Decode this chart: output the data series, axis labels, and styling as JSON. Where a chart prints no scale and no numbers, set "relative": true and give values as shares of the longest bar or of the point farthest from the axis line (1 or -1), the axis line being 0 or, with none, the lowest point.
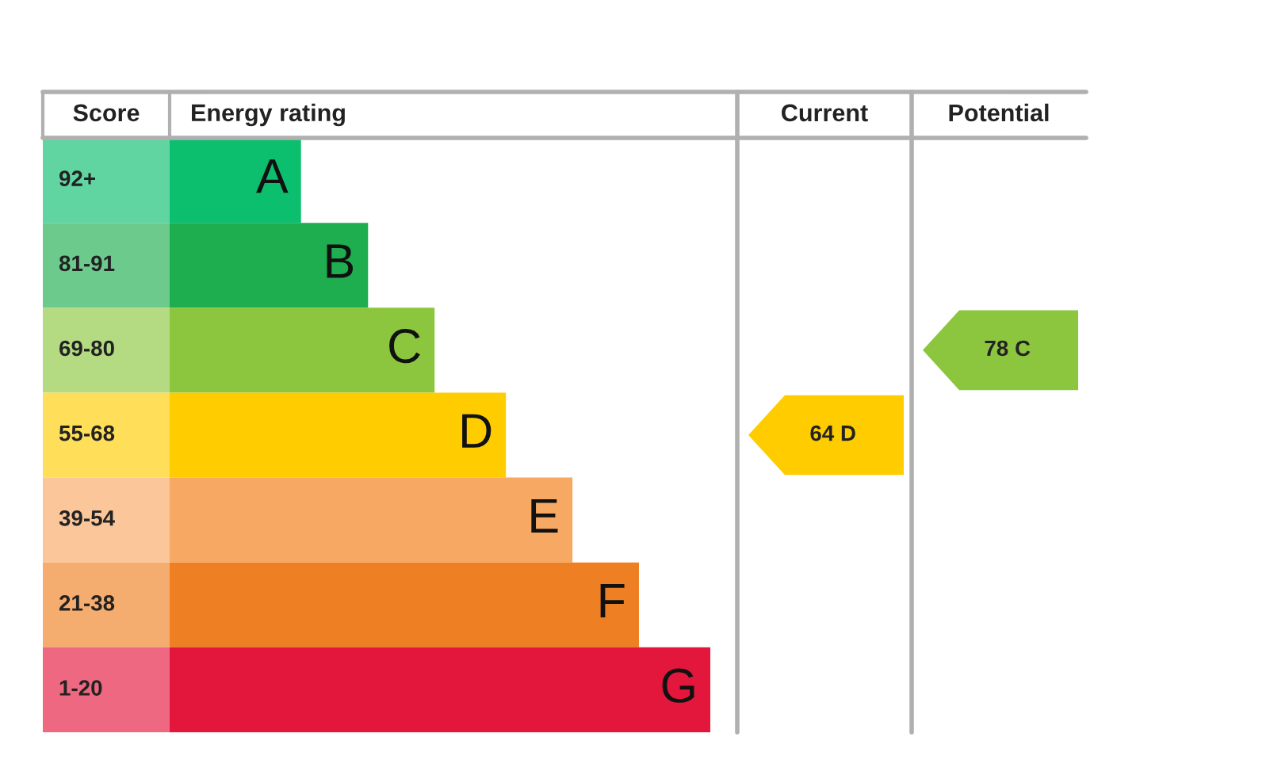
{
  "chart_data": {
    "type": "bar",
    "orientation": "horizontal",
    "relative": true,
    "title": "Energy rating",
    "ylabel": "Score",
    "categories": [
      "A",
      "B",
      "C",
      "D",
      "E",
      "F",
      "G"
    ],
    "values": [
      0.243,
      0.367,
      0.49,
      0.622,
      0.745,
      0.868,
      1
    ],
    "colors": [
      "#0cbf6e",
      "#1ead4f",
      "#8cc63e",
      "#ffcc00",
      "#f7a863",
      "#ee7f22",
      "#e3173b"
    ],
    "annotations": [
      "92+",
      "81-91",
      "69-80",
      "55-68",
      "39-54",
      "21-38",
      "1-20",
      "Current",
      "Potential",
      "64 D",
      "78 C"
    ]
  }
}
